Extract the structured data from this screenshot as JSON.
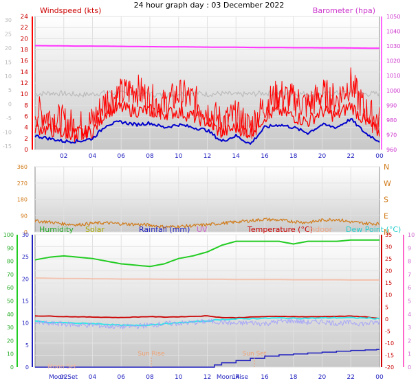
{
  "title": "24 hour graph day : 03 December 2022",
  "hour_labels": [
    "02",
    "04",
    "06",
    "08",
    "10",
    "12",
    "14",
    "16",
    "18",
    "20",
    "22",
    "00"
  ],
  "colors": {
    "windspeed": "#ff0000",
    "gust": "#ff0000",
    "avg": "#0000cc",
    "dir": "#d07a18",
    "barometer": "#ff33ff",
    "humidity": "#22cc22",
    "solar": "#aaaa00",
    "rainfall": "#1f1fbf",
    "uv": "#cc66cc",
    "temperature": "#cc0000",
    "indoor": "#f4b8a0",
    "dewpoint": "#33e6e6",
    "cloud": "#9999ff",
    "gray_series": "#bbbbbb",
    "frame": "#ffffff"
  },
  "chart_data": [
    {
      "type": "line",
      "id": "wind",
      "legend": {
        "windspeed": "Windspeed (kts)",
        "barometer": "Barometer (hpa)"
      },
      "x_range_hours": [
        0,
        24
      ],
      "y_left": {
        "min": 0,
        "max": 24,
        "ticks": [
          0,
          2,
          4,
          6,
          8,
          10,
          12,
          14,
          16,
          18,
          20,
          22,
          24
        ]
      },
      "y_left_alt": {
        "ticks": [
          "-15",
          "-10",
          "-5",
          "0",
          "5",
          "10",
          "15",
          "20",
          "25",
          "30"
        ]
      },
      "y_right": {
        "min": 960,
        "max": 1050,
        "ticks": [
          960,
          970,
          980,
          990,
          1000,
          1010,
          1020,
          1030,
          1040,
          1050
        ]
      },
      "series": [
        {
          "key": "barometer",
          "x": [
            0,
            1,
            2,
            3,
            4,
            5,
            6,
            7,
            8,
            9,
            10,
            11,
            12,
            13,
            14,
            15,
            16,
            17,
            18,
            19,
            20,
            21,
            22,
            23,
            24
          ],
          "y": [
            1030.3,
            1030.2,
            1030.1,
            1030.0,
            1030.0,
            1029.9,
            1029.8,
            1029.7,
            1029.6,
            1029.5,
            1029.5,
            1029.4,
            1029.3,
            1029.2,
            1029.2,
            1029.1,
            1029.0,
            1029.0,
            1028.9,
            1028.9,
            1028.8,
            1028.8,
            1028.7,
            1028.6,
            1028.5
          ]
        },
        {
          "key": "gray_series",
          "x": [
            0,
            1,
            2,
            3,
            4,
            5,
            6,
            7,
            8,
            9,
            10,
            11,
            12,
            13,
            14,
            15,
            16,
            17,
            18,
            19,
            20,
            21,
            22,
            23,
            24
          ],
          "y": [
            10.0,
            10.2,
            10.1,
            9.9,
            10.0,
            10.3,
            10.1,
            10.2,
            10.0,
            9.8,
            10.1,
            10.2,
            10.0,
            10.1,
            9.9,
            10.0,
            10.2,
            10.1,
            10.0,
            10.1,
            9.9,
            10.2,
            10.3,
            10.0,
            10.1
          ]
        },
        {
          "key": "gust",
          "x": [
            0,
            1,
            2,
            3,
            4,
            5,
            6,
            7,
            8,
            9,
            10,
            11,
            12,
            13,
            14,
            15,
            16,
            17,
            18,
            19,
            20,
            21,
            22,
            23,
            24
          ],
          "y": [
            7,
            6,
            5,
            4,
            5,
            9,
            10,
            11,
            9,
            8,
            10,
            9,
            7,
            5,
            6,
            4,
            8,
            10,
            9,
            8,
            10,
            9,
            12,
            7,
            5
          ]
        },
        {
          "key": "windspeed",
          "x": [
            0,
            1,
            2,
            3,
            4,
            5,
            6,
            7,
            8,
            9,
            10,
            11,
            12,
            13,
            14,
            15,
            16,
            17,
            18,
            19,
            20,
            21,
            22,
            23,
            24
          ],
          "y": [
            4,
            3.5,
            3,
            3,
            3.2,
            7,
            7.5,
            7,
            7,
            6.5,
            6.8,
            6,
            5,
            3,
            4,
            3,
            6,
            7,
            6,
            5,
            7,
            6,
            8,
            5,
            3
          ]
        },
        {
          "key": "avg",
          "x": [
            0,
            1,
            2,
            3,
            4,
            5,
            6,
            7,
            8,
            9,
            10,
            11,
            12,
            13,
            14,
            15,
            16,
            17,
            18,
            19,
            20,
            21,
            22,
            23,
            24
          ],
          "y": [
            2.5,
            2,
            1.5,
            1.5,
            2,
            4.5,
            5,
            4.5,
            4.8,
            4,
            4.5,
            4,
            3.5,
            1.5,
            2.5,
            1,
            4,
            4.5,
            4,
            3,
            4.5,
            4,
            5.5,
            3,
            1.5
          ]
        }
      ]
    },
    {
      "type": "line",
      "id": "direction",
      "x_range_hours": [
        0,
        24
      ],
      "y_left": {
        "min": 0,
        "max": 360,
        "ticks": [
          0,
          90,
          180,
          270,
          360
        ]
      },
      "y_right_labels": [
        "N",
        "E",
        "S",
        "W",
        "N"
      ],
      "series": [
        {
          "key": "dir",
          "x": [
            0,
            1,
            2,
            3,
            4,
            5,
            6,
            7,
            8,
            9,
            10,
            11,
            12,
            13,
            14,
            15,
            16,
            17,
            18,
            19,
            20,
            21,
            22,
            23,
            24
          ],
          "y": [
            60,
            55,
            45,
            40,
            48,
            50,
            45,
            42,
            38,
            28,
            30,
            35,
            40,
            48,
            55,
            62,
            70,
            65,
            58,
            52,
            65,
            70,
            55,
            48,
            45
          ]
        }
      ]
    },
    {
      "type": "line",
      "id": "climate",
      "x_range_hours": [
        0,
        24
      ],
      "legend": {
        "humidity": "Humidity",
        "solar": "Solar",
        "rainfall": "Rainfall (mm)",
        "uv": "UV",
        "temperature": "Temperature (°C)",
        "indoor": "Indoor",
        "dewpoint": "Dew Point (°C)"
      },
      "y_hum": {
        "min": 0,
        "max": 100,
        "ticks": [
          0,
          10,
          20,
          30,
          40,
          50,
          60,
          70,
          80,
          90,
          100
        ]
      },
      "y_rain": {
        "min": 0,
        "max": 30,
        "ticks": [
          0,
          5,
          10,
          15,
          20,
          25,
          30
        ]
      },
      "y_temp": {
        "min": -20,
        "max": 35,
        "ticks": [
          -20,
          -15,
          -10,
          -5,
          0,
          5,
          10,
          15,
          20,
          25,
          30,
          35
        ]
      },
      "y_uv": {
        "min": 0,
        "max": 10,
        "ticks": [
          0,
          1,
          2,
          3,
          4,
          5,
          6,
          7,
          8,
          9,
          10
        ]
      },
      "annotations": {
        "sun_rise": "Sun Rise",
        "sun_set": "Sun Set",
        "moon_set": "Moon Set",
        "moon_rise": "Moon Rise"
      },
      "series": [
        {
          "key": "humidity",
          "x": [
            0,
            1,
            2,
            3,
            4,
            5,
            6,
            7,
            8,
            9,
            10,
            11,
            12,
            13,
            14,
            15,
            16,
            17,
            18,
            19,
            20,
            21,
            22,
            23,
            24
          ],
          "y": [
            81,
            83,
            84,
            83,
            82,
            80,
            78,
            77,
            76,
            78,
            82,
            84,
            87,
            92,
            95,
            95,
            95,
            95,
            93,
            95,
            95,
            95,
            96,
            96,
            96
          ]
        },
        {
          "key": "indoor",
          "x": [
            0,
            1,
            2,
            3,
            4,
            5,
            6,
            7,
            8,
            9,
            10,
            11,
            12,
            13,
            14,
            15,
            16,
            17,
            18,
            19,
            20,
            21,
            22,
            23,
            24
          ],
          "y": [
            17.0,
            16.9,
            16.8,
            16.8,
            16.7,
            16.7,
            16.6,
            16.6,
            16.6,
            16.5,
            16.5,
            16.5,
            16.5,
            16.5,
            16.4,
            16.4,
            16.4,
            16.4,
            16.3,
            16.3,
            16.3,
            16.3,
            16.2,
            16.2,
            16.2
          ]
        },
        {
          "key": "temperature",
          "x": [
            0,
            1,
            2,
            3,
            4,
            5,
            6,
            7,
            8,
            9,
            10,
            11,
            12,
            13,
            14,
            15,
            16,
            17,
            18,
            19,
            20,
            21,
            22,
            23,
            24
          ],
          "y": [
            1.3,
            1.2,
            1.0,
            0.9,
            0.8,
            0.7,
            0.6,
            0.8,
            1.0,
            0.8,
            0.9,
            1.1,
            1.3,
            0.6,
            0.5,
            0.8,
            1.0,
            1.1,
            1.0,
            0.9,
            1.0,
            1.1,
            1.2,
            0.9,
            0.2
          ]
        },
        {
          "key": "dewpoint",
          "x": [
            0,
            1,
            2,
            3,
            4,
            5,
            6,
            7,
            8,
            9,
            10,
            11,
            12,
            13,
            14,
            15,
            16,
            17,
            18,
            19,
            20,
            21,
            22,
            23,
            24
          ],
          "y": [
            -1.0,
            -1.5,
            -1.5,
            -1.8,
            -1.9,
            -2.2,
            -2.6,
            -2.7,
            -2.4,
            -2.0,
            -1.6,
            -1.2,
            -0.8,
            -0.2,
            0.0,
            0.2,
            0.3,
            0.4,
            0.3,
            0.3,
            0.4,
            0.5,
            0.5,
            0.4,
            0.1
          ]
        },
        {
          "key": "cloud",
          "x": [
            0,
            1,
            2,
            3,
            4,
            5,
            6,
            7,
            8,
            9,
            10,
            11,
            12,
            13,
            14,
            15,
            16,
            17,
            18,
            19,
            20,
            21,
            22,
            23,
            24
          ],
          "y": [
            -1.5,
            -2.0,
            -2.0,
            -2.5,
            -2.5,
            -3.0,
            -3.2,
            -3.0,
            -2.5,
            -2.0,
            -1.8,
            -1.5,
            -1.0,
            -1.2,
            -2.0,
            -1.5,
            -2.0,
            -1.0,
            -0.8,
            -1.5,
            -1.0,
            -1.8,
            -1.5,
            -2.0,
            -1.2
          ]
        },
        {
          "key": "rainfall",
          "x": [
            0,
            1,
            2,
            3,
            4,
            5,
            6,
            7,
            8,
            9,
            10,
            11,
            12,
            12.5,
            13,
            14,
            15,
            16,
            17,
            18,
            19,
            20,
            21,
            22,
            23,
            23.8,
            24
          ],
          "y": [
            0,
            0,
            0,
            0,
            0,
            0,
            0,
            0,
            0,
            0,
            0,
            0,
            0,
            0.5,
            1.0,
            1.5,
            2.0,
            2.5,
            2.8,
            3.0,
            3.2,
            3.4,
            3.6,
            3.8,
            3.9,
            4.0,
            4.0
          ]
        }
      ]
    }
  ]
}
